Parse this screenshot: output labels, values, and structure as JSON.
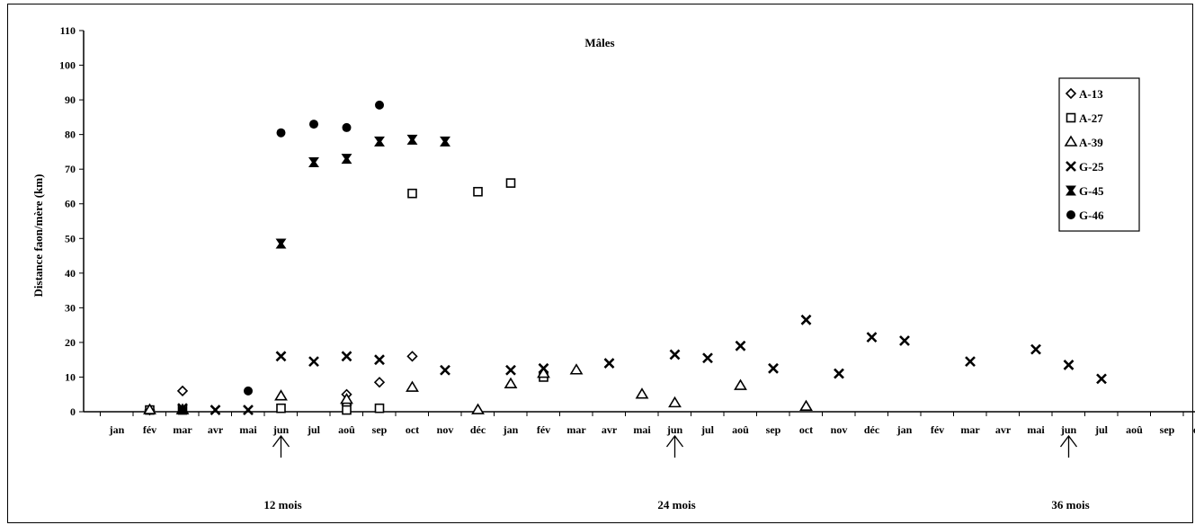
{
  "chart_data": {
    "type": "scatter",
    "title": "Mâles",
    "ylabel": "Distance faon/mère (km)",
    "xlabel": "",
    "ylim": [
      0,
      110
    ],
    "yticks": [
      0,
      10,
      20,
      30,
      40,
      50,
      60,
      70,
      80,
      90,
      100,
      110
    ],
    "categories": [
      "jan",
      "fév",
      "mar",
      "avr",
      "mai",
      "jun",
      "jul",
      "aoû",
      "sep",
      "oct",
      "nov",
      "déc",
      "jan",
      "fév",
      "mar",
      "avr",
      "mai",
      "jun",
      "jul",
      "aoû",
      "sep",
      "oct",
      "nov",
      "déc",
      "jan",
      "fév",
      "mar",
      "avr",
      "mai",
      "jun",
      "jul",
      "aoû",
      "sep",
      "oct"
    ],
    "legend_position": "top-right",
    "grid": false,
    "annotations": [
      {
        "label": "12 mois",
        "category_index": 5
      },
      {
        "label": "24 mois",
        "category_index": 17
      },
      {
        "label": "36 mois",
        "category_index": 29
      }
    ],
    "series": [
      {
        "name": "A-13",
        "marker": "diamond",
        "points": [
          [
            1,
            0.5
          ],
          [
            2,
            6
          ],
          [
            7,
            5
          ],
          [
            7,
            2
          ],
          [
            8,
            8.5
          ],
          [
            9,
            16
          ]
        ]
      },
      {
        "name": "A-27",
        "marker": "square",
        "points": [
          [
            1,
            0.5
          ],
          [
            2,
            0.5
          ],
          [
            5,
            1
          ],
          [
            7,
            0.5
          ],
          [
            8,
            1
          ],
          [
            9,
            63
          ],
          [
            11,
            63.5
          ],
          [
            12,
            66
          ],
          [
            13,
            10
          ]
        ]
      },
      {
        "name": "A-39",
        "marker": "triangle",
        "points": [
          [
            1,
            0.5
          ],
          [
            2,
            0.5
          ],
          [
            5,
            4.5
          ],
          [
            7,
            3.5
          ],
          [
            9,
            7
          ],
          [
            11,
            0.5
          ],
          [
            12,
            8
          ],
          [
            13,
            11
          ],
          [
            14,
            12
          ],
          [
            16,
            5
          ],
          [
            17,
            2.5
          ],
          [
            19,
            7.5
          ],
          [
            21,
            1.5
          ]
        ]
      },
      {
        "name": "G-25",
        "marker": "x",
        "points": [
          [
            2,
            1
          ],
          [
            3,
            0.5
          ],
          [
            4,
            0.5
          ],
          [
            5,
            16
          ],
          [
            6,
            14.5
          ],
          [
            7,
            16
          ],
          [
            8,
            15
          ],
          [
            10,
            12
          ],
          [
            12,
            12
          ],
          [
            13,
            12.5
          ],
          [
            15,
            14
          ],
          [
            17,
            16.5
          ],
          [
            18,
            15.5
          ],
          [
            19,
            19
          ],
          [
            20,
            12.5
          ],
          [
            21,
            26.5
          ],
          [
            22,
            11
          ],
          [
            23,
            21.5
          ],
          [
            24,
            20.5
          ],
          [
            26,
            14.5
          ],
          [
            28,
            18
          ],
          [
            29,
            13.5
          ],
          [
            30,
            9.5
          ]
        ]
      },
      {
        "name": "G-45",
        "marker": "bowtie",
        "points": [
          [
            5,
            48.5
          ],
          [
            6,
            72
          ],
          [
            7,
            73
          ],
          [
            8,
            78
          ],
          [
            9,
            78.5
          ],
          [
            10,
            78
          ]
        ]
      },
      {
        "name": "G-46",
        "marker": "circle",
        "points": [
          [
            2,
            0.5
          ],
          [
            4,
            6
          ],
          [
            5,
            80.5
          ],
          [
            6,
            83
          ],
          [
            7,
            82
          ],
          [
            8,
            88.5
          ]
        ]
      }
    ]
  }
}
